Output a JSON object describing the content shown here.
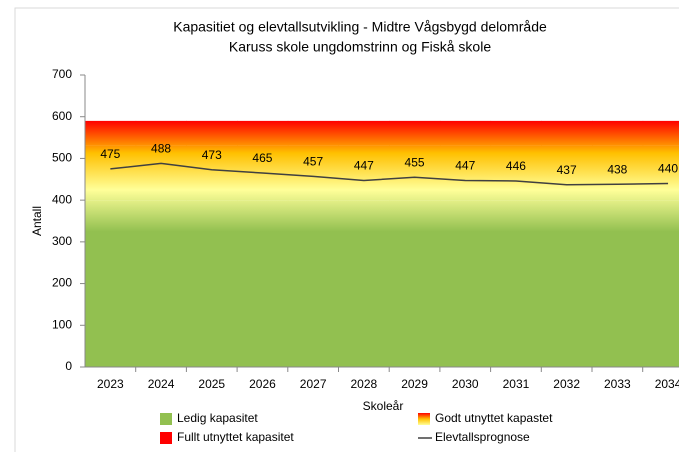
{
  "chart_data": {
    "type": "stacked_area_line",
    "title": "Kapasitiet og elevtallsutvikling - Midtre Vågsbygd delområde",
    "subtitle": "Karuss skole ungdomstrinn og Fiskå skole",
    "y_label": "Antall",
    "x_label": "Skoleår",
    "categories": [
      "2023",
      "2024",
      "2025",
      "2026",
      "2027",
      "2028",
      "2029",
      "2030",
      "2031",
      "2032",
      "2033",
      "2034"
    ],
    "series": [
      {
        "name": "Ledig kapasitet",
        "kind": "area",
        "color": "#92c050",
        "values": [
          400,
          400,
          400,
          400,
          400,
          400,
          400,
          400,
          400,
          400,
          400,
          400
        ]
      },
      {
        "name": "Godt utnyttet kapastet",
        "kind": "area",
        "color": "#ffc000",
        "values": [
          130,
          130,
          130,
          130,
          130,
          130,
          130,
          130,
          130,
          130,
          130,
          130
        ]
      },
      {
        "name": "Fullt utnyttet kapasitet",
        "kind": "area",
        "color": "#ff0000",
        "values": [
          60,
          60,
          60,
          60,
          60,
          60,
          60,
          60,
          60,
          60,
          60,
          60
        ]
      },
      {
        "name": "Elevtallsprognose",
        "kind": "line",
        "color": "#404040",
        "values": [
          475,
          488,
          473,
          465,
          457,
          447,
          455,
          447,
          446,
          437,
          438,
          440
        ]
      }
    ],
    "ylim": [
      0,
      700
    ],
    "yticks": [
      0,
      100,
      200,
      300,
      400,
      500,
      600,
      700
    ],
    "legend": "bottom"
  }
}
